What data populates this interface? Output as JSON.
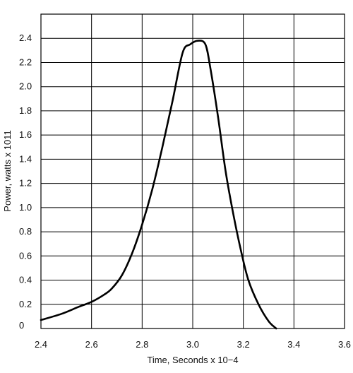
{
  "chart_data": {
    "type": "line",
    "title": "",
    "xlabel": "Time, Seconds x 10−4",
    "ylabel": "Power, watts x 1011",
    "xlim": [
      2.4,
      3.6
    ],
    "ylim": [
      0,
      2.6
    ],
    "grid": true,
    "legend": "none",
    "x_ticks": [
      "2.4",
      "2.6",
      "2.8",
      "3.0",
      "3.2",
      "3.4",
      "3.6"
    ],
    "y_ticks": [
      "0",
      "0.2",
      "0.4",
      "0.6",
      "0.8",
      "1.0",
      "1.2",
      "1.4",
      "1.6",
      "1.8",
      "2.0",
      "2.2",
      "2.4"
    ],
    "series": [
      {
        "color": "#000000",
        "x": [
          2.4,
          2.48,
          2.55,
          2.6,
          2.65,
          2.68,
          2.72,
          2.76,
          2.8,
          2.84,
          2.88,
          2.92,
          2.96,
          2.99,
          3.02,
          3.05,
          3.07,
          3.1,
          3.13,
          3.16,
          3.19,
          3.22,
          3.26,
          3.3,
          3.33
        ],
        "y": [
          0.07,
          0.12,
          0.18,
          0.22,
          0.28,
          0.33,
          0.44,
          0.62,
          0.86,
          1.15,
          1.5,
          1.88,
          2.28,
          2.35,
          2.38,
          2.35,
          2.15,
          1.75,
          1.3,
          0.95,
          0.65,
          0.4,
          0.2,
          0.06,
          0.0
        ]
      }
    ]
  }
}
